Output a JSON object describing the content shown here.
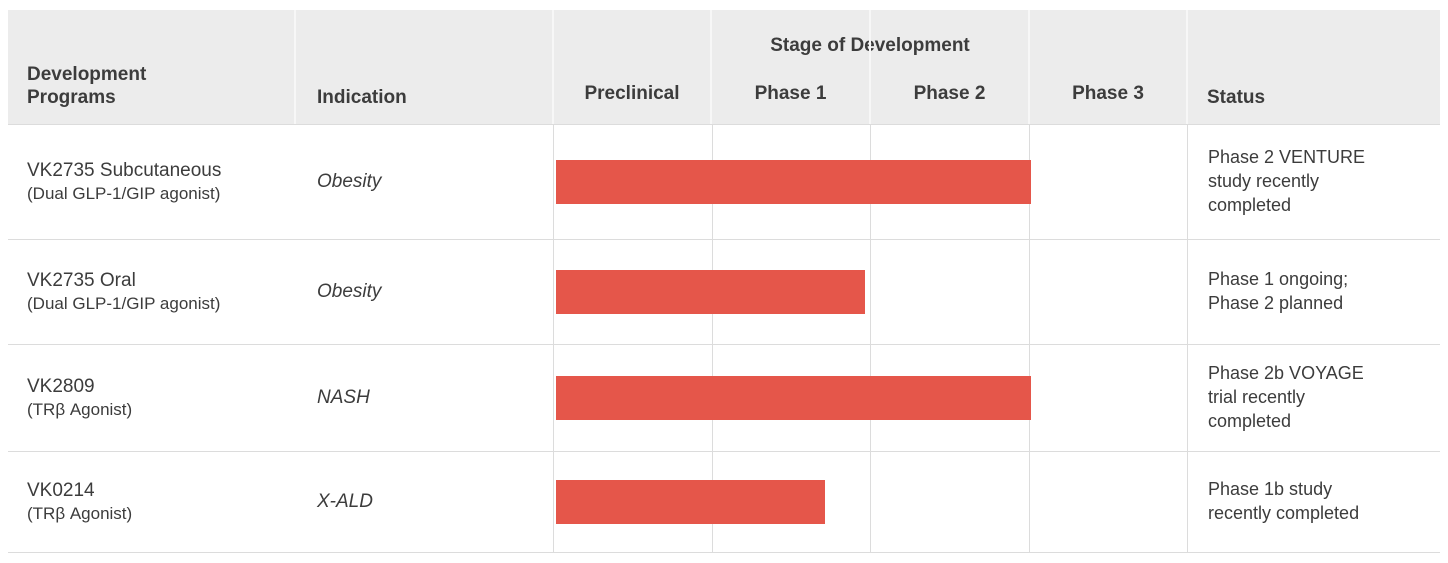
{
  "colors": {
    "bar": "#e5564a",
    "header_bg": "#ececec",
    "grid": "#dcdcdc",
    "header_sep": "#f7f7f7",
    "text": "#3c3c3c"
  },
  "header": {
    "programs": "Development\nPrograms",
    "indication": "Indication",
    "stage_group": "Stage of Development",
    "stages": [
      "Preclinical",
      "Phase 1",
      "Phase 2",
      "Phase 3"
    ],
    "status": "Status"
  },
  "rows": [
    {
      "program": "VK2735 Subcutaneous",
      "program_sub": "(Dual GLP-1/GIP agonist)",
      "indication": "Obesity",
      "status": "Phase 2 VENTURE\nstudy recently\ncompleted"
    },
    {
      "program": "VK2735 Oral",
      "program_sub": "(Dual GLP-1/GIP agonist)",
      "indication": "Obesity",
      "status": "Phase 1 ongoing;\nPhase 2 planned"
    },
    {
      "program": "VK2809",
      "program_sub": "(TRβ Agonist)",
      "indication": "NASH",
      "status": "Phase 2b VOYAGE\ntrial recently\ncompleted"
    },
    {
      "program": "VK0214",
      "program_sub": "(TRβ Agonist)",
      "indication": "X-ALD",
      "status": "Phase 1b study\nrecently completed"
    }
  ],
  "chart_data": {
    "type": "bar",
    "orientation": "horizontal",
    "title": "Stage of Development",
    "categories": [
      "VK2735 Subcutaneous",
      "VK2735 Oral",
      "VK2809",
      "VK0214"
    ],
    "values": [
      3.0,
      1.95,
      3.0,
      1.7
    ],
    "x_axis_stages": [
      "Preclinical",
      "Phase 1",
      "Phase 2",
      "Phase 3"
    ],
    "value_scale": "stage units completed; 0 = start of Preclinical, 4 = end of Phase 3",
    "xlim": [
      0,
      4
    ],
    "grid": true,
    "bar_color": "#e5564a"
  }
}
